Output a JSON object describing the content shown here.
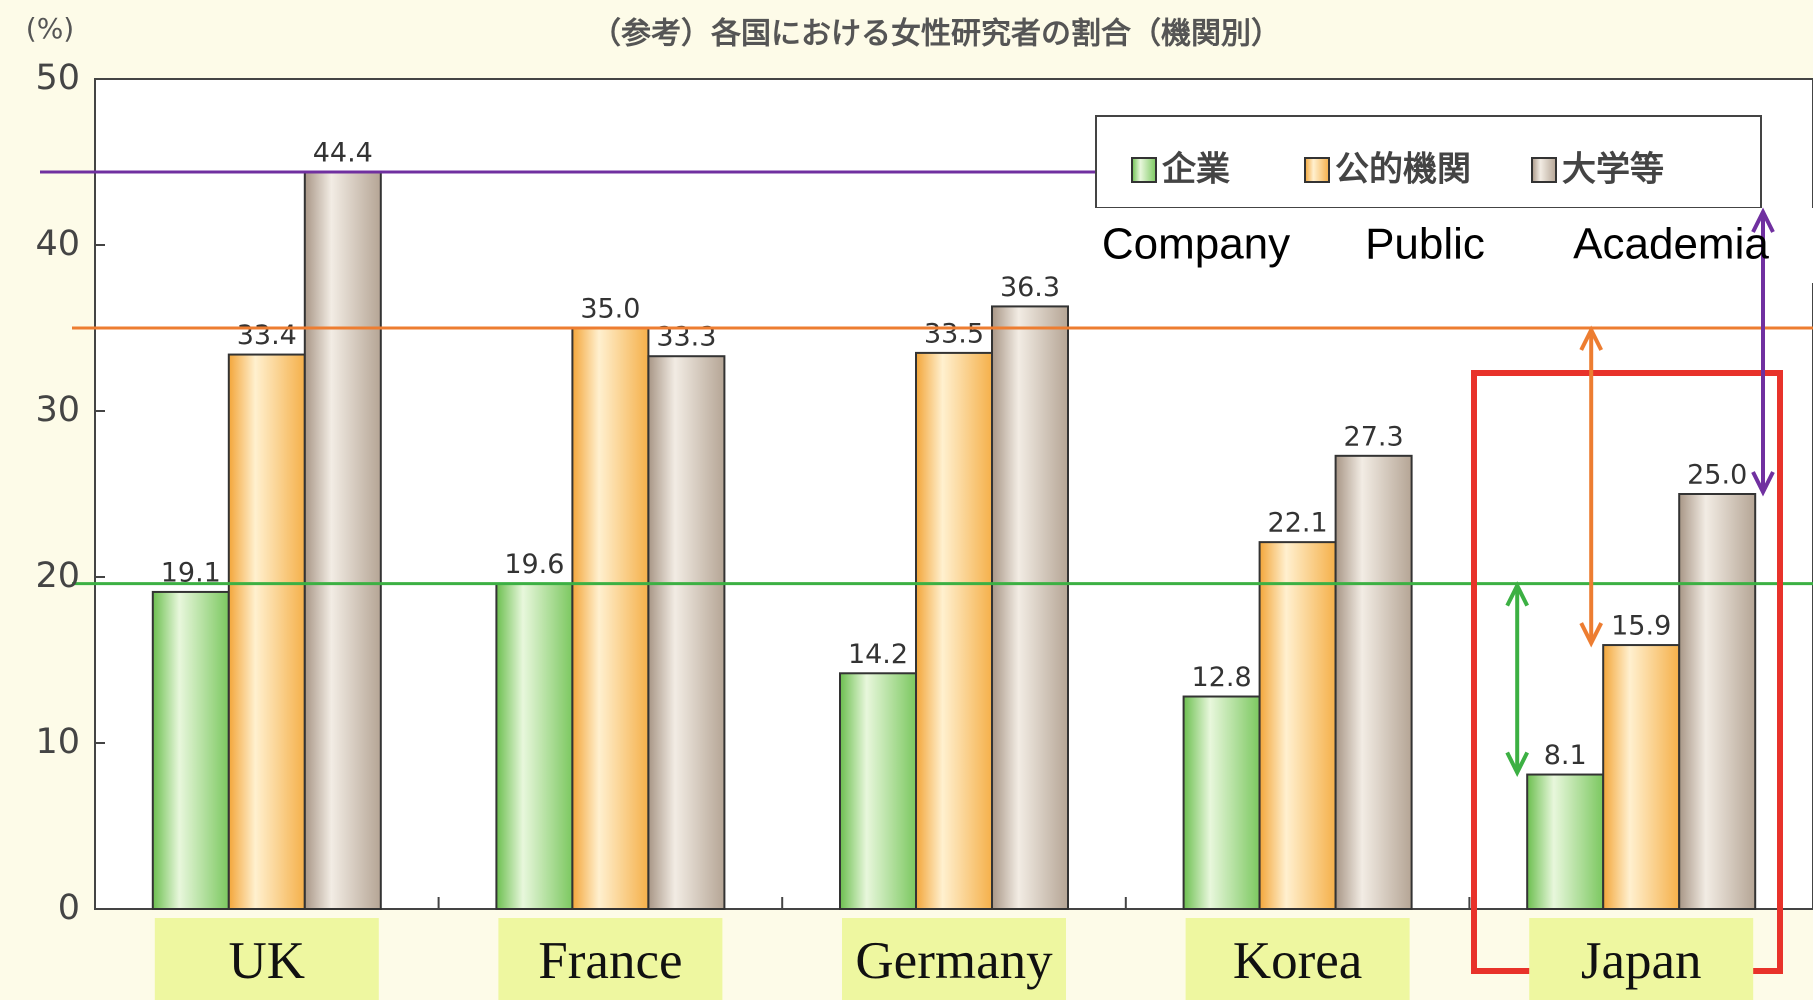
{
  "chart_data": {
    "type": "bar",
    "title": "（参考）各国における女性研究者の割合（機関別）",
    "y_label": "(%)",
    "categories": [
      "UK",
      "France",
      "Germany",
      "Korea",
      "Japan"
    ],
    "series": [
      {
        "name": "企業",
        "english": "Company",
        "color": "#7cc860",
        "values": [
          19.1,
          19.6,
          14.2,
          12.8,
          8.1
        ],
        "value_labels": [
          "19.1",
          "19.6",
          "14.2",
          "12.8",
          "8.1"
        ]
      },
      {
        "name": "公的機関",
        "english": "Public",
        "color": "#f5b04a",
        "values": [
          33.4,
          35.0,
          33.5,
          22.1,
          15.9
        ],
        "value_labels": [
          "33.4",
          "35.0",
          "33.5",
          "22.1",
          "15.9"
        ]
      },
      {
        "name": "大学等",
        "english": "Academia",
        "color": "#b5a595",
        "values": [
          44.4,
          33.3,
          36.3,
          27.3,
          25.0
        ],
        "value_labels": [
          "44.4",
          "33.3",
          "36.3",
          "27.3",
          "25.0"
        ]
      }
    ],
    "ylim": [
      0,
      50
    ],
    "yticks": [
      0,
      10,
      20,
      30,
      40,
      50
    ],
    "reference_lines": [
      {
        "value": 44.4,
        "color": "#7030a0"
      },
      {
        "value": 35.0,
        "color": "#ed7d31"
      },
      {
        "value": 19.6,
        "color": "#3cb043"
      }
    ]
  }
}
